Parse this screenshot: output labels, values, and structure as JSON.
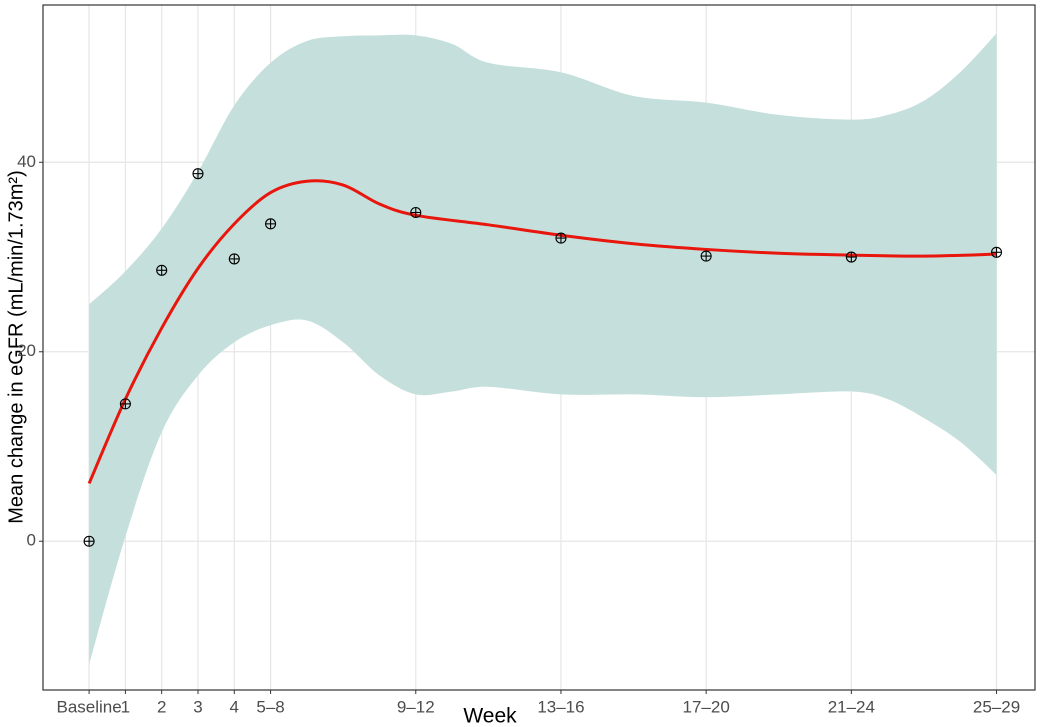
{
  "chart_data": {
    "type": "smooth-scatter",
    "x_label": "Week",
    "y_label": "Mean change in eGFR (mL/min/1.73m²)",
    "xlim": [
      -1.27,
      26.06
    ],
    "ylim": [
      -15.7,
      56.6
    ],
    "xticks": [
      {
        "value": 0,
        "label": "Baseline"
      },
      1,
      2,
      3,
      4,
      {
        "value": 5,
        "label": "5–8"
      },
      {
        "value": 9,
        "label": "9–12"
      },
      {
        "value": 13,
        "label": "13–16"
      },
      {
        "value": 17,
        "label": "17–20"
      },
      {
        "value": 21,
        "label": "21–24"
      },
      {
        "value": 25,
        "label": "25–29"
      }
    ],
    "yticks": [
      0,
      20,
      40
    ],
    "grid": true,
    "x": [
      0,
      1,
      2,
      3,
      4,
      5,
      9,
      13,
      17,
      21,
      25
    ],
    "values": [
      0,
      14.5,
      28.6,
      38.8,
      29.8,
      33.5,
      34.7,
      32.0,
      30.1,
      30.0,
      30.5
    ],
    "color": "#000000",
    "smooth": {
      "color": "#e8160c",
      "x": [
        0,
        1,
        2,
        3,
        4,
        5,
        6,
        7,
        8,
        9,
        11,
        13,
        15,
        17,
        19,
        21,
        23,
        25
      ],
      "values": [
        6.1,
        15,
        22.5,
        28.8,
        33.5,
        36.8,
        38.0,
        37.6,
        35.6,
        34.4,
        33.4,
        32.3,
        31.4,
        30.8,
        30.4,
        30.2,
        30.1,
        30.3
      ]
    },
    "band": {
      "color": "#c5e0dc",
      "x": [
        0,
        1,
        2,
        3,
        4,
        5,
        6,
        7,
        8,
        9,
        10,
        11,
        13,
        15,
        17,
        19,
        21,
        22,
        23,
        24,
        25
      ],
      "upper": [
        25,
        28.5,
        33,
        39,
        46,
        50.5,
        52.8,
        53.3,
        53.4,
        53.4,
        52.5,
        50.5,
        49.5,
        47,
        46.3,
        45,
        44.5,
        45,
        46.5,
        49.5,
        53.6
      ],
      "lower": [
        -13,
        0.5,
        11.5,
        17.5,
        21,
        22.8,
        23.3,
        21,
        17.5,
        15.5,
        15.8,
        16.3,
        15.5,
        15.5,
        15.2,
        15.5,
        15.8,
        15,
        13,
        10.5,
        7
      ]
    }
  }
}
